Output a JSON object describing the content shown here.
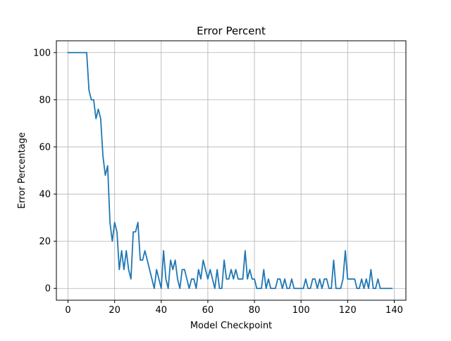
{
  "chart_data": {
    "type": "line",
    "title": "Error Percent",
    "xlabel": "Model Checkpoint",
    "ylabel": "Error Percentage",
    "xlim": [
      -5,
      145
    ],
    "ylim": [
      -5,
      105
    ],
    "xticks": [
      0,
      20,
      40,
      60,
      80,
      100,
      120,
      140
    ],
    "yticks": [
      0,
      20,
      40,
      60,
      80,
      100
    ],
    "grid": true,
    "series": [
      {
        "color": "#1f77b4",
        "x": [
          0,
          1,
          2,
          3,
          4,
          5,
          6,
          7,
          8,
          9,
          10,
          11,
          12,
          13,
          14,
          15,
          16,
          17,
          18,
          19,
          20,
          21,
          22,
          23,
          24,
          25,
          26,
          27,
          28,
          29,
          30,
          31,
          32,
          33,
          34,
          35,
          36,
          37,
          38,
          39,
          40,
          41,
          42,
          43,
          44,
          45,
          46,
          47,
          48,
          49,
          50,
          51,
          52,
          53,
          54,
          55,
          56,
          57,
          58,
          59,
          60,
          61,
          62,
          63,
          64,
          65,
          66,
          67,
          68,
          69,
          70,
          71,
          72,
          73,
          74,
          75,
          76,
          77,
          78,
          79,
          80,
          81,
          82,
          83,
          84,
          85,
          86,
          87,
          88,
          89,
          90,
          91,
          92,
          93,
          94,
          95,
          96,
          97,
          98,
          99,
          100,
          101,
          102,
          103,
          104,
          105,
          106,
          107,
          108,
          109,
          110,
          111,
          112,
          113,
          114,
          115,
          116,
          117,
          118,
          119,
          120,
          121,
          122,
          123,
          124,
          125,
          126,
          127,
          128,
          129,
          130,
          131,
          132,
          133,
          134,
          135,
          136,
          137,
          138,
          139
        ],
        "y": [
          100,
          100,
          100,
          100,
          100,
          100,
          100,
          100,
          100,
          84,
          80,
          80,
          72,
          76,
          72,
          56,
          48,
          52,
          28,
          20,
          28,
          24,
          8,
          16,
          8,
          16,
          8,
          4,
          24,
          24,
          28,
          12,
          12,
          16,
          12,
          8,
          4,
          0,
          8,
          4,
          0,
          16,
          4,
          0,
          12,
          8,
          12,
          4,
          0,
          8,
          8,
          4,
          0,
          4,
          4,
          0,
          8,
          4,
          12,
          8,
          4,
          8,
          4,
          0,
          8,
          0,
          0,
          12,
          4,
          4,
          8,
          4,
          8,
          4,
          4,
          4,
          16,
          4,
          8,
          4,
          4,
          0,
          0,
          0,
          8,
          0,
          4,
          0,
          0,
          0,
          4,
          4,
          0,
          4,
          0,
          0,
          4,
          0,
          0,
          0,
          0,
          0,
          4,
          0,
          0,
          4,
          4,
          0,
          4,
          0,
          4,
          4,
          0,
          0,
          12,
          0,
          0,
          0,
          4,
          16,
          4,
          4,
          4,
          4,
          0,
          0,
          4,
          0,
          4,
          0,
          8,
          0,
          0,
          4,
          0,
          0,
          0,
          0,
          0,
          0
        ]
      }
    ]
  }
}
